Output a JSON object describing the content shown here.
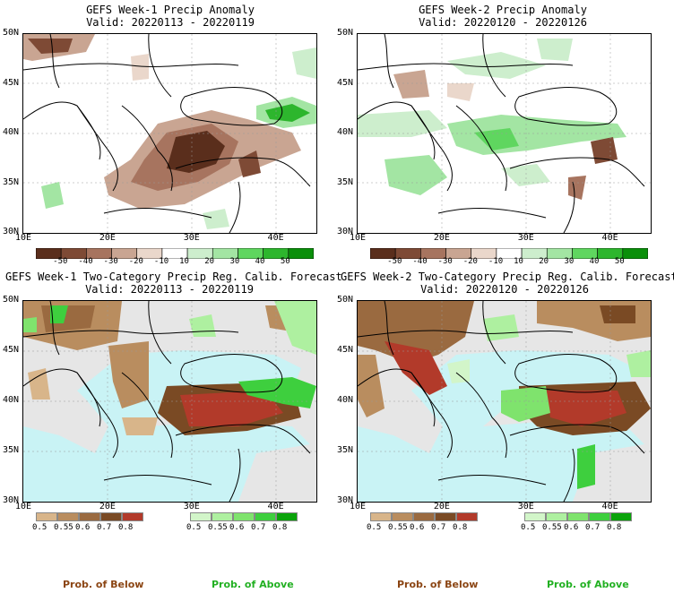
{
  "panels": [
    {
      "title_line1": "GEFS Week-1 Precip Anomaly",
      "title_line2": "Valid: 20220113 - 20220119"
    },
    {
      "title_line1": "GEFS Week-2 Precip Anomaly",
      "title_line2": "Valid: 20220120 - 20220126"
    },
    {
      "title_line1": "GEFS Week-1 Two-Category Precip Reg. Calib. Forecast",
      "title_line2": "Valid: 20220113 - 20220119"
    },
    {
      "title_line1": "GEFS Week-2 Two-Category Precip Reg. Calib. Forecast",
      "title_line2": "Valid: 20220120 - 20220126"
    }
  ],
  "axes": {
    "lat_labels": [
      "50N",
      "45N",
      "40N",
      "35N",
      "30N"
    ],
    "lon_labels": [
      "10E",
      "20E",
      "30E",
      "40E"
    ]
  },
  "anomaly_colorbar": {
    "labels": [
      "-50",
      "-40",
      "-30",
      "-20",
      "-10",
      "10",
      "20",
      "30",
      "40",
      "50"
    ],
    "colors": [
      "#5a2e1c",
      "#7e4a35",
      "#a7745f",
      "#c9a592",
      "#ead7cb",
      "#ffffff",
      "#cdeecd",
      "#a3e5a3",
      "#5fd65f",
      "#2db62d",
      "#0a8f0a"
    ]
  },
  "prob_colorbars": {
    "below_labels": [
      "0.5",
      "0.55",
      "0.6",
      "0.7",
      "0.8"
    ],
    "below_colors": [
      "#d8b58a",
      "#b98d5f",
      "#9a6a40",
      "#7a4a24",
      "#b23a2a"
    ],
    "above_labels": [
      "0.5",
      "0.55",
      "0.6",
      "0.7",
      "0.8"
    ],
    "above_colors": [
      "#d2f5c9",
      "#aef0a0",
      "#7fe36d",
      "#3ecf3e",
      "#0aa30a"
    ],
    "below_caption": "Prob. of Below",
    "above_caption": "Prob. of Above",
    "below_caption_color": "#8b4513",
    "above_caption_color": "#22b022"
  },
  "colors": {
    "sea_fill": "#c9f3f5",
    "grey_land": "#e6e6e6"
  }
}
